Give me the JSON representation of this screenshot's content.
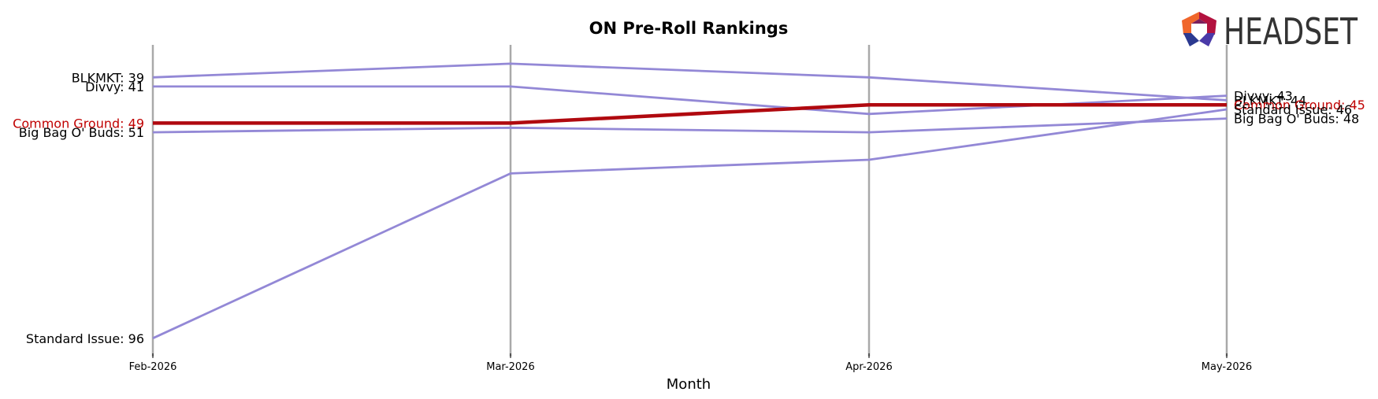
{
  "chart_data": {
    "type": "line",
    "title": "ON Pre-Roll Rankings",
    "xlabel": "Month",
    "ylabel": "",
    "x": [
      "Feb-2026",
      "Mar-2026",
      "Apr-2026",
      "May-2026"
    ],
    "y_inverted": true,
    "grid": "vertical lines at each month",
    "legend": "none; series labeled at line ends",
    "series": [
      {
        "name": "BLKMKT",
        "values": [
          39,
          36,
          39,
          44
        ],
        "highlight": false,
        "color": "#9388d6",
        "start_label": "BLKMKT: 39",
        "end_label": "BLKMKT: 44"
      },
      {
        "name": "Divvy",
        "values": [
          41,
          41,
          47,
          43
        ],
        "highlight": false,
        "color": "#9388d6",
        "start_label": "Divvy: 41",
        "end_label": "Divvy: 43"
      },
      {
        "name": "Common Ground",
        "values": [
          49,
          49,
          45,
          45
        ],
        "highlight": true,
        "color": "#b0090f",
        "start_label": "Common Ground: 49",
        "end_label": "Common Ground: 45"
      },
      {
        "name": "Big Bag O' Buds",
        "values": [
          51,
          50,
          51,
          48
        ],
        "highlight": false,
        "color": "#9388d6",
        "start_label": "Big Bag O' Buds: 51",
        "end_label": "Big Bag O' Buds: 48"
      },
      {
        "name": "Standard Issue",
        "values": [
          96,
          60,
          57,
          46
        ],
        "highlight": false,
        "color": "#9388d6",
        "start_label": "Standard Issue: 96",
        "end_label": "Standard Issue: 46"
      }
    ]
  },
  "logo": {
    "text": "HEADSET"
  }
}
